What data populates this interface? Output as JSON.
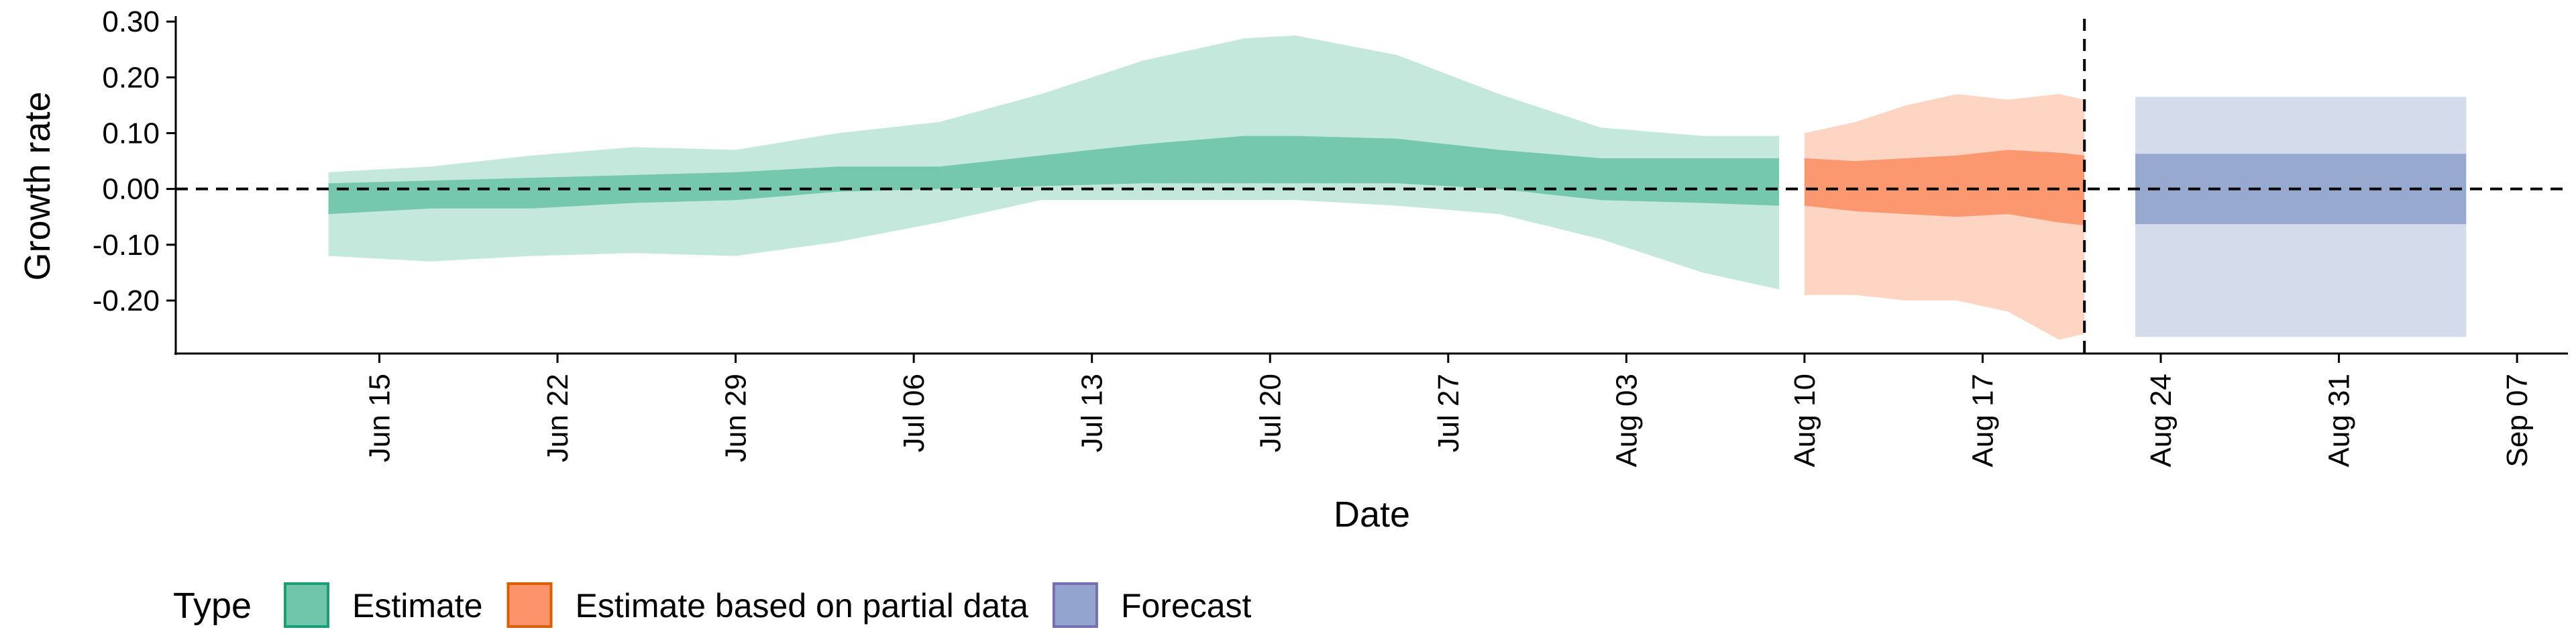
{
  "chart_data": {
    "type": "area",
    "xlabel": "Date",
    "ylabel": "Growth rate",
    "ylim": [
      -0.295,
      0.305
    ],
    "y_ticks": [
      0.3,
      0.2,
      0.1,
      0.0,
      -0.1,
      -0.2
    ],
    "y_tick_labels": [
      "0.30",
      "0.20",
      "0.10",
      "0.00",
      "-0.10",
      "-0.20"
    ],
    "xlim": [
      "2020-06-07",
      "2020-09-09"
    ],
    "x_ticks": [
      "2020-06-15",
      "2020-06-22",
      "2020-06-29",
      "2020-07-06",
      "2020-07-13",
      "2020-07-20",
      "2020-07-27",
      "2020-08-03",
      "2020-08-10",
      "2020-08-17",
      "2020-08-24",
      "2020-08-31",
      "2020-09-07"
    ],
    "x_tick_labels": [
      "Jun 15",
      "Jun 22",
      "Jun 29",
      "Jul 06",
      "Jul 13",
      "Jul 20",
      "Jul 27",
      "Aug 03",
      "Aug 10",
      "Aug 17",
      "Aug 24",
      "Aug 31",
      "Sep 07"
    ],
    "reference_lines": {
      "horizontal_y": 0.0,
      "vertical_date": "2020-08-21",
      "style": "dashed"
    },
    "legend": {
      "title": "Type",
      "position": "bottom",
      "entries": [
        {
          "label": "Estimate",
          "fill": "#66c2a5",
          "border": "#1b9e77"
        },
        {
          "label": "Estimate based on partial data",
          "fill": "#fc8d62",
          "border": "#d95f02"
        },
        {
          "label": "Forecast",
          "fill": "#8da0cb",
          "border": "#7570b3"
        }
      ]
    },
    "series": [
      {
        "name": "Estimate",
        "color": "#66c2a5",
        "dates": [
          "2020-06-13",
          "2020-06-17",
          "2020-06-21",
          "2020-06-25",
          "2020-06-29",
          "2020-07-03",
          "2020-07-07",
          "2020-07-11",
          "2020-07-15",
          "2020-07-19",
          "2020-07-21",
          "2020-07-25",
          "2020-07-29",
          "2020-08-02",
          "2020-08-06",
          "2020-08-09"
        ],
        "outer_upper": [
          0.03,
          0.04,
          0.06,
          0.075,
          0.07,
          0.1,
          0.12,
          0.17,
          0.23,
          0.27,
          0.275,
          0.24,
          0.17,
          0.11,
          0.095,
          0.095
        ],
        "outer_lower": [
          -0.12,
          -0.13,
          -0.12,
          -0.115,
          -0.12,
          -0.095,
          -0.06,
          -0.02,
          -0.02,
          -0.02,
          -0.02,
          -0.03,
          -0.045,
          -0.09,
          -0.15,
          -0.18
        ],
        "inner_upper": [
          0.01,
          0.015,
          0.02,
          0.025,
          0.03,
          0.04,
          0.04,
          0.06,
          0.08,
          0.095,
          0.095,
          0.09,
          0.07,
          0.055,
          0.055,
          0.055
        ],
        "inner_lower": [
          -0.045,
          -0.035,
          -0.035,
          -0.025,
          -0.02,
          -0.005,
          0.0,
          0.005,
          0.01,
          0.01,
          0.01,
          0.01,
          0.0,
          -0.02,
          -0.025,
          -0.03
        ]
      },
      {
        "name": "Estimate based on partial data",
        "color": "#fc8d62",
        "dates": [
          "2020-08-10",
          "2020-08-12",
          "2020-08-14",
          "2020-08-16",
          "2020-08-18",
          "2020-08-20",
          "2020-08-21"
        ],
        "outer_upper": [
          0.1,
          0.12,
          0.15,
          0.17,
          0.16,
          0.17,
          0.16
        ],
        "outer_lower": [
          -0.19,
          -0.19,
          -0.2,
          -0.2,
          -0.22,
          -0.27,
          -0.26
        ],
        "inner_upper": [
          0.055,
          0.05,
          0.055,
          0.06,
          0.07,
          0.065,
          0.06
        ],
        "inner_lower": [
          -0.03,
          -0.04,
          -0.045,
          -0.05,
          -0.045,
          -0.06,
          -0.065
        ]
      },
      {
        "name": "Forecast",
        "color": "#8da0cb",
        "dates": [
          "2020-08-23",
          "2020-09-05"
        ],
        "outer_upper": [
          0.165,
          0.165
        ],
        "outer_lower": [
          -0.265,
          -0.265
        ],
        "inner_upper": [
          0.063,
          0.063
        ],
        "inner_lower": [
          -0.063,
          -0.063
        ]
      }
    ]
  }
}
